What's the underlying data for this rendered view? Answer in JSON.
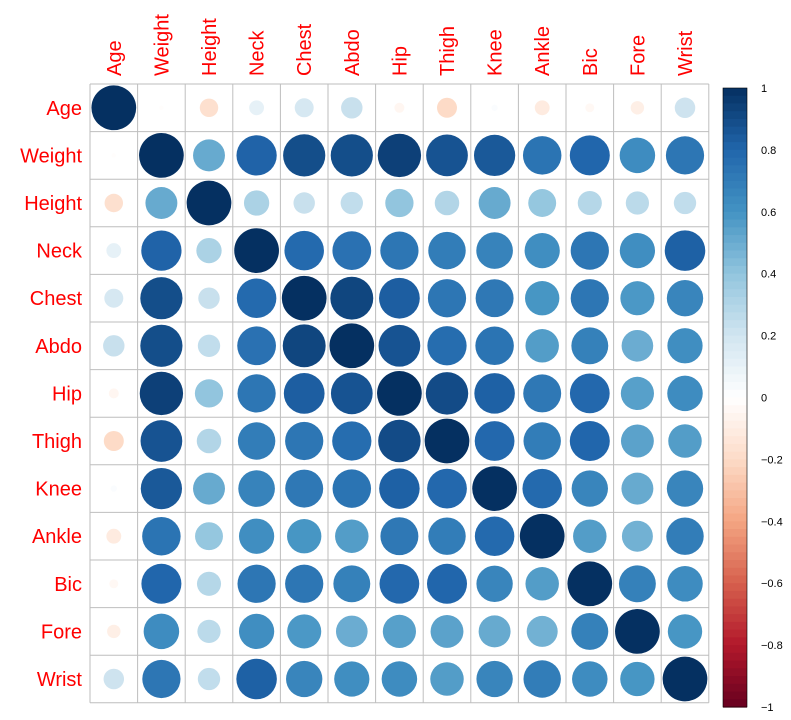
{
  "chart_data": {
    "type": "heatmap",
    "subtype": "correlation-circle-matrix",
    "title": "",
    "xlabel": "",
    "ylabel": "",
    "variables": [
      "Age",
      "Weight",
      "Height",
      "Neck",
      "Chest",
      "Abdo",
      "Hip",
      "Thigh",
      "Knee",
      "Ankle",
      "Bic",
      "Fore",
      "Wrist"
    ],
    "matrix": [
      [
        1.0,
        -0.01,
        -0.17,
        0.11,
        0.18,
        0.23,
        -0.05,
        -0.2,
        0.02,
        -0.11,
        -0.04,
        -0.09,
        0.21
      ],
      [
        -0.01,
        1.0,
        0.51,
        0.81,
        0.89,
        0.89,
        0.94,
        0.87,
        0.85,
        0.74,
        0.8,
        0.63,
        0.73
      ],
      [
        -0.17,
        0.51,
        1.0,
        0.32,
        0.23,
        0.25,
        0.4,
        0.3,
        0.51,
        0.39,
        0.29,
        0.27,
        0.25
      ],
      [
        0.11,
        0.81,
        0.32,
        1.0,
        0.78,
        0.75,
        0.73,
        0.7,
        0.67,
        0.62,
        0.73,
        0.62,
        0.82
      ],
      [
        0.18,
        0.89,
        0.23,
        0.78,
        1.0,
        0.92,
        0.83,
        0.73,
        0.72,
        0.59,
        0.73,
        0.58,
        0.66
      ],
      [
        0.23,
        0.89,
        0.25,
        0.75,
        0.92,
        1.0,
        0.87,
        0.77,
        0.74,
        0.56,
        0.68,
        0.5,
        0.62
      ],
      [
        -0.05,
        0.94,
        0.4,
        0.73,
        0.83,
        0.87,
        1.0,
        0.9,
        0.82,
        0.72,
        0.79,
        0.55,
        0.63
      ],
      [
        -0.2,
        0.87,
        0.3,
        0.7,
        0.73,
        0.77,
        0.9,
        1.0,
        0.79,
        0.7,
        0.8,
        0.54,
        0.56
      ],
      [
        0.02,
        0.85,
        0.51,
        0.67,
        0.72,
        0.74,
        0.82,
        0.79,
        1.0,
        0.78,
        0.66,
        0.51,
        0.66
      ],
      [
        -0.11,
        0.74,
        0.39,
        0.62,
        0.59,
        0.56,
        0.72,
        0.7,
        0.78,
        1.0,
        0.56,
        0.48,
        0.7
      ],
      [
        -0.04,
        0.8,
        0.29,
        0.73,
        0.73,
        0.68,
        0.79,
        0.8,
        0.66,
        0.56,
        1.0,
        0.68,
        0.63
      ],
      [
        -0.09,
        0.63,
        0.27,
        0.62,
        0.58,
        0.5,
        0.55,
        0.54,
        0.51,
        0.48,
        0.68,
        1.0,
        0.59
      ],
      [
        0.21,
        0.73,
        0.25,
        0.82,
        0.66,
        0.62,
        0.63,
        0.56,
        0.66,
        0.7,
        0.63,
        0.59,
        1.0
      ]
    ],
    "value_range": [
      -1,
      1
    ],
    "colorbar": {
      "ticks": [
        {
          "value": 1,
          "label": "1"
        },
        {
          "value": 0.8,
          "label": "0.8"
        },
        {
          "value": 0.6,
          "label": "0.6"
        },
        {
          "value": 0.4,
          "label": "0.4"
        },
        {
          "value": 0.2,
          "label": "0.2"
        },
        {
          "value": 0,
          "label": "0"
        },
        {
          "value": -0.2,
          "label": "−0.2"
        },
        {
          "value": -0.4,
          "label": "−0.4"
        },
        {
          "value": -0.6,
          "label": "−0.6"
        },
        {
          "value": -0.8,
          "label": "−0.8"
        },
        {
          "value": -1,
          "label": "−1"
        }
      ],
      "placement": "right"
    },
    "grid": true,
    "colors": {
      "label": "#ff0000",
      "grid": "#bebebe",
      "scale": [
        "#67001f",
        "#b2182b",
        "#d6604d",
        "#f4a582",
        "#fddbc7",
        "#ffffff",
        "#d1e5f0",
        "#92c5de",
        "#4393c3",
        "#2166ac",
        "#053061"
      ]
    }
  }
}
